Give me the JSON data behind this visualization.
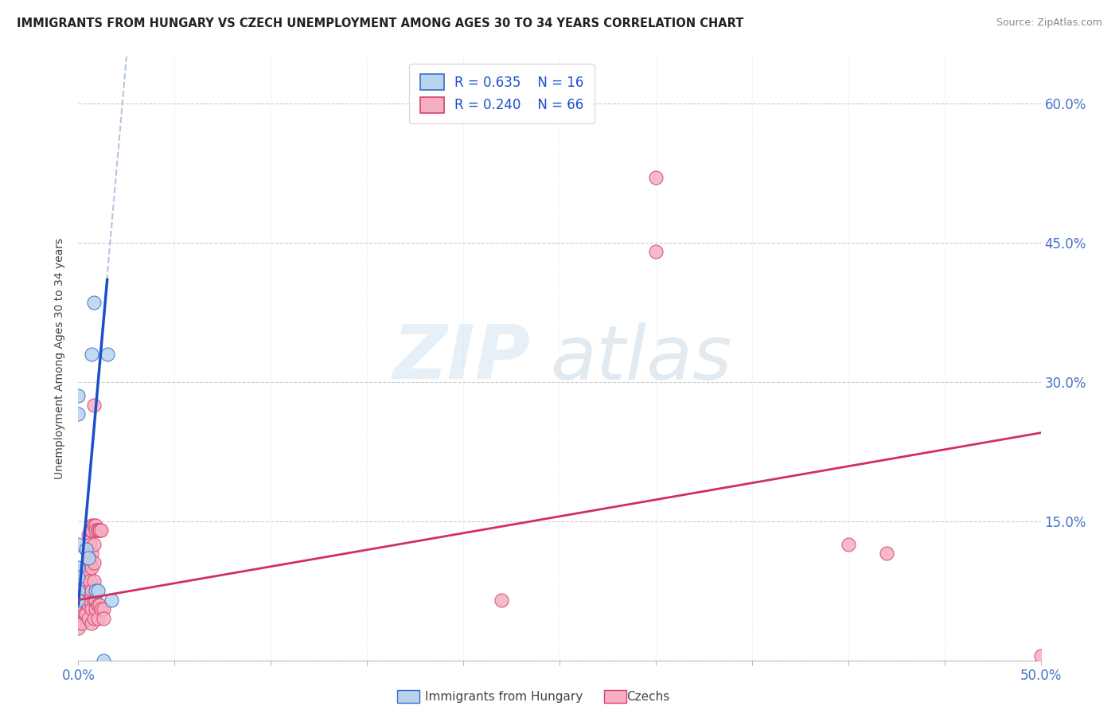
{
  "title": "IMMIGRANTS FROM HUNGARY VS CZECH UNEMPLOYMENT AMONG AGES 30 TO 34 YEARS CORRELATION CHART",
  "source": "Source: ZipAtlas.com",
  "ylabel": "Unemployment Among Ages 30 to 34 years",
  "xlim": [
    0.0,
    0.5
  ],
  "ylim": [
    0.0,
    0.65
  ],
  "xticks": [
    0.0,
    0.05,
    0.1,
    0.15,
    0.2,
    0.25,
    0.3,
    0.35,
    0.4,
    0.45,
    0.5
  ],
  "yticks": [
    0.0,
    0.15,
    0.3,
    0.45,
    0.6
  ],
  "hungary_fill": "#b8d4ed",
  "hungary_edge": "#3a6bc8",
  "hungary_line": "#1a50cc",
  "czech_fill": "#f5afc0",
  "czech_edge": "#d84070",
  "czech_line": "#d03060",
  "hungary_points": [
    [
      0.0,
      0.285
    ],
    [
      0.0,
      0.265
    ],
    [
      0.0,
      0.125
    ],
    [
      0.0,
      0.1
    ],
    [
      0.0,
      0.09
    ],
    [
      0.0,
      0.075
    ],
    [
      0.0,
      0.065
    ],
    [
      0.004,
      0.12
    ],
    [
      0.005,
      0.11
    ],
    [
      0.007,
      0.33
    ],
    [
      0.008,
      0.385
    ],
    [
      0.009,
      0.075
    ],
    [
      0.01,
      0.075
    ],
    [
      0.013,
      0.0
    ],
    [
      0.015,
      0.33
    ],
    [
      0.017,
      0.065
    ]
  ],
  "czech_points": [
    [
      0.0,
      0.065
    ],
    [
      0.0,
      0.06
    ],
    [
      0.0,
      0.055
    ],
    [
      0.0,
      0.05
    ],
    [
      0.0,
      0.045
    ],
    [
      0.0,
      0.04
    ],
    [
      0.0,
      0.035
    ],
    [
      0.002,
      0.09
    ],
    [
      0.002,
      0.07
    ],
    [
      0.002,
      0.055
    ],
    [
      0.002,
      0.04
    ],
    [
      0.003,
      0.085
    ],
    [
      0.003,
      0.065
    ],
    [
      0.003,
      0.05
    ],
    [
      0.004,
      0.12
    ],
    [
      0.004,
      0.1
    ],
    [
      0.004,
      0.085
    ],
    [
      0.004,
      0.065
    ],
    [
      0.004,
      0.05
    ],
    [
      0.005,
      0.135
    ],
    [
      0.005,
      0.115
    ],
    [
      0.005,
      0.095
    ],
    [
      0.005,
      0.075
    ],
    [
      0.005,
      0.06
    ],
    [
      0.005,
      0.045
    ],
    [
      0.006,
      0.14
    ],
    [
      0.006,
      0.125
    ],
    [
      0.006,
      0.105
    ],
    [
      0.006,
      0.085
    ],
    [
      0.006,
      0.065
    ],
    [
      0.007,
      0.145
    ],
    [
      0.007,
      0.14
    ],
    [
      0.007,
      0.115
    ],
    [
      0.007,
      0.1
    ],
    [
      0.007,
      0.075
    ],
    [
      0.007,
      0.055
    ],
    [
      0.007,
      0.04
    ],
    [
      0.008,
      0.275
    ],
    [
      0.008,
      0.145
    ],
    [
      0.008,
      0.125
    ],
    [
      0.008,
      0.105
    ],
    [
      0.008,
      0.085
    ],
    [
      0.008,
      0.065
    ],
    [
      0.008,
      0.045
    ],
    [
      0.009,
      0.145
    ],
    [
      0.009,
      0.14
    ],
    [
      0.009,
      0.065
    ],
    [
      0.009,
      0.055
    ],
    [
      0.01,
      0.14
    ],
    [
      0.01,
      0.14
    ],
    [
      0.01,
      0.06
    ],
    [
      0.01,
      0.045
    ],
    [
      0.011,
      0.14
    ],
    [
      0.011,
      0.14
    ],
    [
      0.011,
      0.06
    ],
    [
      0.012,
      0.14
    ],
    [
      0.012,
      0.055
    ],
    [
      0.013,
      0.055
    ],
    [
      0.013,
      0.045
    ],
    [
      0.3,
      0.52
    ],
    [
      0.3,
      0.44
    ],
    [
      0.4,
      0.125
    ],
    [
      0.42,
      0.115
    ],
    [
      0.22,
      0.065
    ],
    [
      0.5,
      0.005
    ]
  ],
  "hungary_reg_line": [
    [
      0.0,
      0.06
    ],
    [
      0.015,
      0.41
    ]
  ],
  "hungary_dash_line": [
    [
      0.0,
      0.06
    ],
    [
      0.025,
      0.65
    ]
  ],
  "czech_reg_line": [
    [
      0.0,
      0.065
    ],
    [
      0.5,
      0.245
    ]
  ]
}
